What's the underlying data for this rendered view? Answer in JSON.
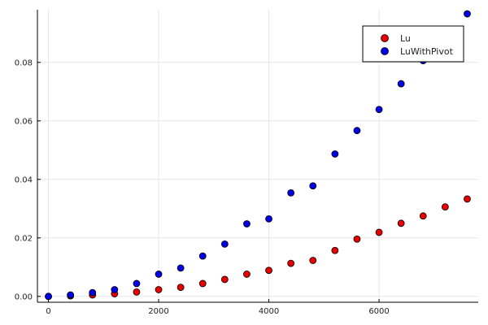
{
  "chart_data": {
    "type": "scatter",
    "title": "",
    "xlabel": "",
    "ylabel": "",
    "xlim": [
      -200,
      7800
    ],
    "ylim": [
      -0.002,
      0.098
    ],
    "x_ticks": [
      0,
      2000,
      4000,
      6000
    ],
    "x_tick_labels": [
      "0",
      "2000",
      "4000",
      "6000"
    ],
    "y_ticks": [
      0.0,
      0.02,
      0.04,
      0.06,
      0.08
    ],
    "y_tick_labels": [
      "0.00",
      "0.02",
      "0.04",
      "0.06",
      "0.08"
    ],
    "grid": true,
    "legend_position": "top-right",
    "series": [
      {
        "name": "Lu",
        "color": "#e60000",
        "x": [
          0,
          400,
          800,
          1200,
          1600,
          2000,
          2400,
          2800,
          3200,
          3600,
          4000,
          4400,
          4800,
          5200,
          5600,
          6000,
          6400,
          6800,
          7200,
          7600
        ],
        "y": [
          0.0,
          0.0002,
          0.0005,
          0.0009,
          0.0015,
          0.0023,
          0.0031,
          0.0044,
          0.0058,
          0.0076,
          0.0089,
          0.0113,
          0.0123,
          0.0157,
          0.0196,
          0.0219,
          0.025,
          0.0275,
          0.0306,
          0.0333
        ]
      },
      {
        "name": "LuWithPivot",
        "color": "#0000e6",
        "x": [
          0,
          400,
          800,
          1200,
          1600,
          2000,
          2400,
          2800,
          3200,
          3600,
          4000,
          4400,
          4800,
          5200,
          5600,
          6000,
          6400,
          6800,
          7600
        ],
        "y": [
          0.0,
          0.0005,
          0.0013,
          0.0023,
          0.0044,
          0.0076,
          0.0097,
          0.0138,
          0.0179,
          0.0248,
          0.0265,
          0.0354,
          0.0378,
          0.0487,
          0.0567,
          0.0639,
          0.0727,
          0.0806,
          0.0966
        ]
      }
    ]
  }
}
